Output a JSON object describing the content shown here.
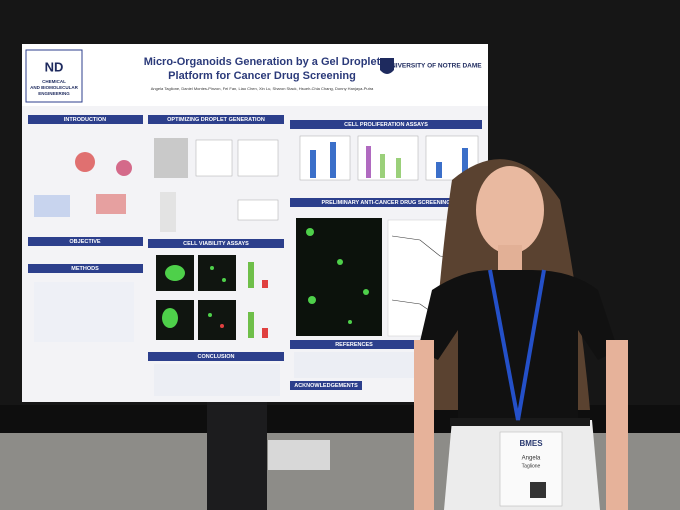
{
  "poster": {
    "title_lines": [
      "Micro-Organoids Generation by a Gel Droplet",
      "Platform for Cancer Drug Screening"
    ],
    "authors": "Angela Taglione, Daniel Montes-Pinzon, Fei Fan, Liao Chen, Xin Lu, Sharon Stack, Hsueh-Chia Chang, Donny Hanjaya-Putra",
    "university": "UNIVERSITY OF NOTRE DAME",
    "department": [
      "CHEMICAL",
      "AND BIOMOLECULAR",
      "ENGINEERING"
    ],
    "sections": [
      "INTRODUCTION",
      "OPTIMIZING DROPLET GENERATION",
      "CELL PROLIFERATION ASSAYS",
      "OBJECTIVE",
      "METHODS",
      "CELL VIABILITY ASSAYS",
      "PRELIMINARY ANTI-CANCER DRUG SCREENING",
      "REFERENCES",
      "CONCLUSION",
      "ACKNOWLEDGEMENTS"
    ]
  },
  "badge": {
    "org": "BMES",
    "first_name": "Angela",
    "last_name": "Taglione"
  }
}
